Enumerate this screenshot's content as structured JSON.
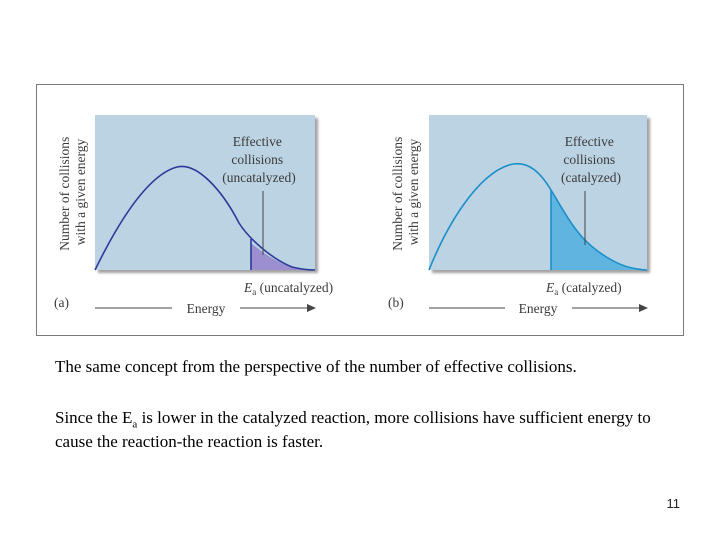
{
  "slide": {
    "caption_1": "The same concept from the perspective of the number of effective collisions.",
    "caption_2_part1": "Since the E",
    "caption_2_sub": "a",
    "caption_2_part2": " is lower in the catalyzed reaction, more collisions have sufficient energy to cause the reaction-the reaction is faster.",
    "page_number": "11"
  },
  "figure": {
    "panels": [
      {
        "id": "a",
        "panel_label": "(a)",
        "y_axis_line1": "Number of collisions",
        "y_axis_line2": "with a given energy",
        "annotation_lines": [
          "Effective",
          "collisions",
          "(uncatalyzed)"
        ],
        "threshold_symbol": "E",
        "threshold_sub": "a",
        "threshold_text": " (uncatalyzed)",
        "x_axis_label": "Energy",
        "curve_color": "#2e3a9a",
        "shade_color": "#9b8fd0"
      },
      {
        "id": "b",
        "panel_label": "(b)",
        "y_axis_line1": "Number of collisions",
        "y_axis_line2": "with a given energy",
        "annotation_lines": [
          "Effective",
          "collisions",
          "(catalyzed)"
        ],
        "threshold_symbol": "E",
        "threshold_sub": "a",
        "threshold_text": " (catalyzed)",
        "x_axis_label": "Energy",
        "curve_color": "#1b8fc9",
        "shade_color": "#5fb4e0"
      }
    ],
    "panel_bg_color": "#bcd3e3"
  }
}
